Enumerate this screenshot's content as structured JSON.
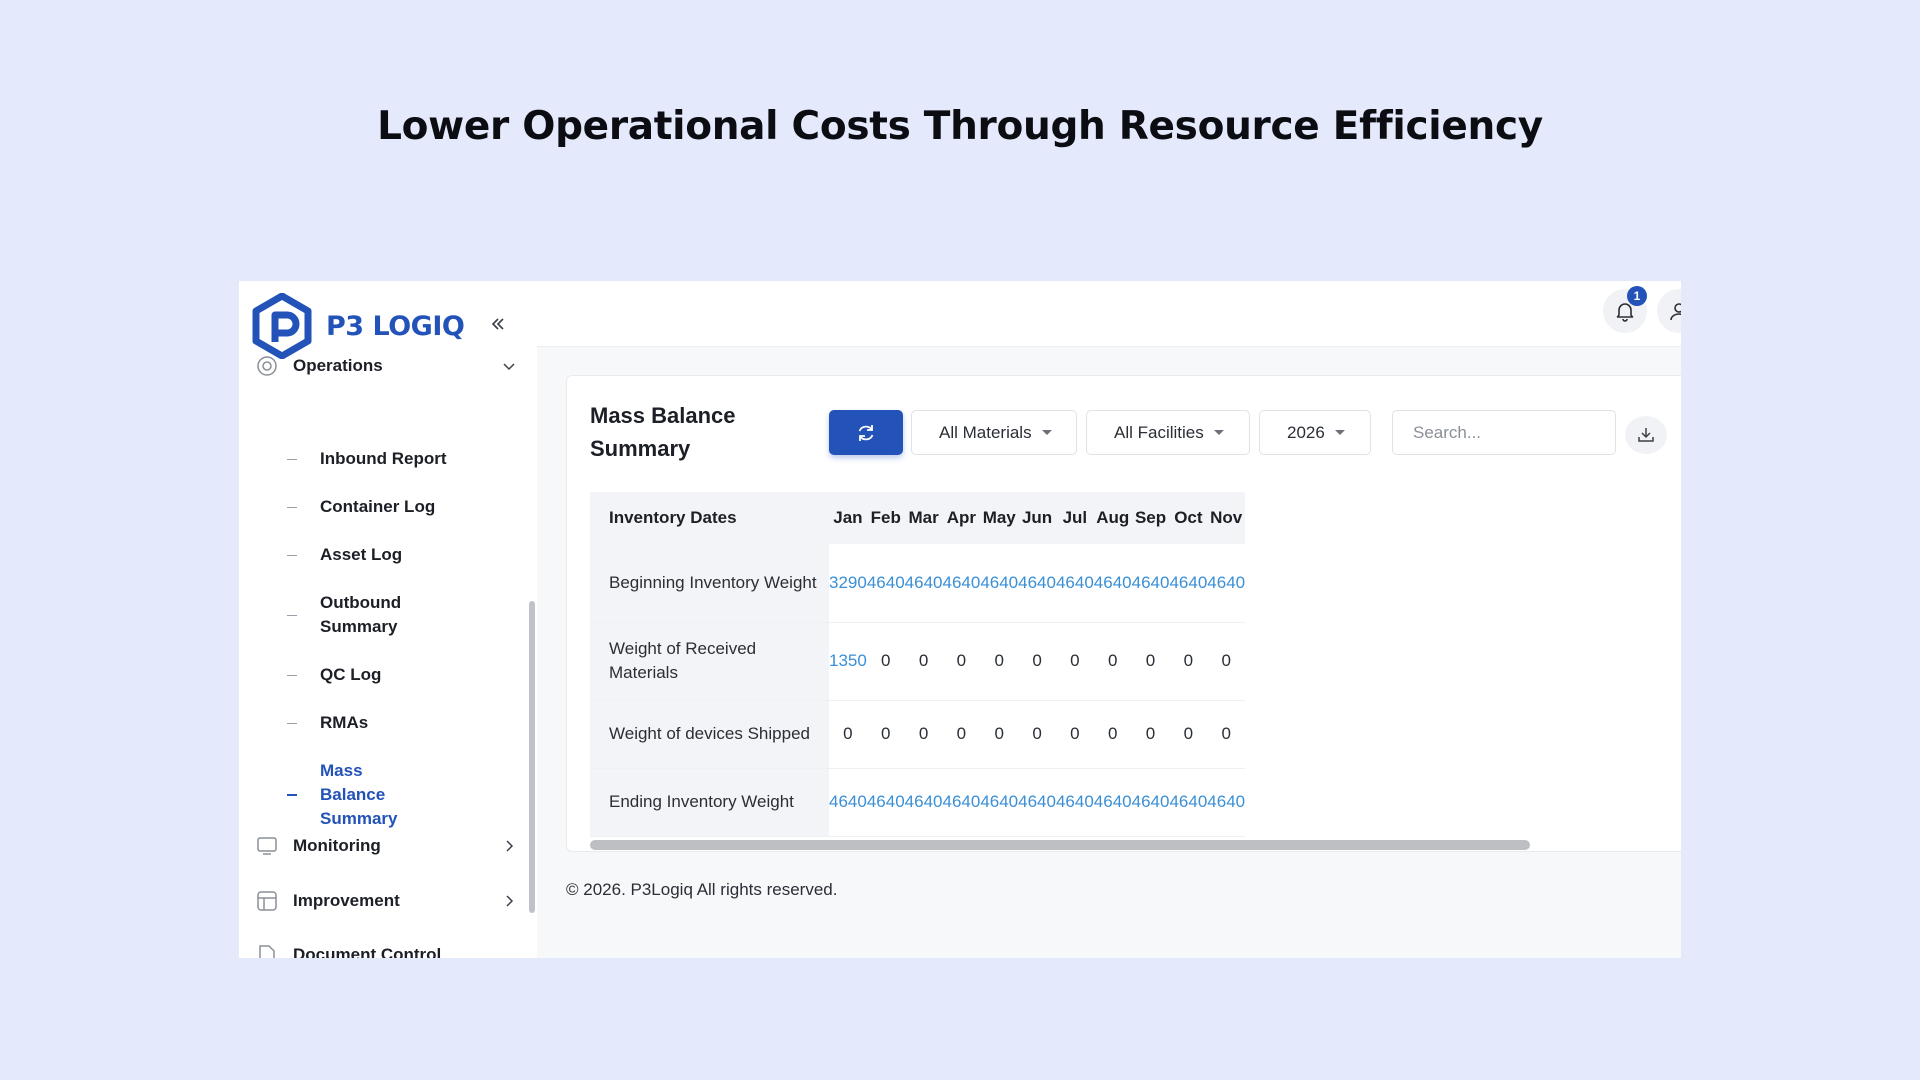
{
  "headline": "Lower Operational Costs Through Resource Efficiency",
  "brand": {
    "name": "P3 LOGIQ",
    "accent": "#2352b8"
  },
  "sidebar": {
    "sections": [
      {
        "label": "Operations",
        "icon": "target-icon",
        "expanded": true
      },
      {
        "label": "Monitoring",
        "icon": "monitor-icon",
        "expanded": false
      },
      {
        "label": "Improvement",
        "icon": "layout-icon",
        "expanded": false
      },
      {
        "label": "Document Control",
        "icon": "document-icon",
        "expanded": false
      }
    ],
    "operations_items": [
      {
        "label": "Inbound Report"
      },
      {
        "label": "Container Log"
      },
      {
        "label": "Asset Log"
      },
      {
        "label": "Outbound Summary"
      },
      {
        "label": "QC Log"
      },
      {
        "label": "RMAs"
      },
      {
        "label": "Mass Balance Summary",
        "active": true
      }
    ]
  },
  "topbar": {
    "notification_count": "1"
  },
  "card": {
    "title": "Mass Balance Summary",
    "filters": {
      "materials": "All Materials",
      "facilities": "All Facilities",
      "year": "2026"
    },
    "search_placeholder": "Search...",
    "table": {
      "header": "Inventory Dates",
      "months": [
        "Jan",
        "Feb",
        "Mar",
        "Apr",
        "May",
        "Jun",
        "Jul",
        "Aug",
        "Sep",
        "Oct",
        "Nov"
      ],
      "rows": [
        {
          "label": "Beginning Inventory Weight",
          "values": [
            "3290",
            "4640",
            "4640",
            "4640",
            "4640",
            "4640",
            "4640",
            "4640",
            "4640",
            "4640",
            "4640"
          ],
          "link": true
        },
        {
          "label": "Weight of Received Materials",
          "values": [
            "1350",
            "0",
            "0",
            "0",
            "0",
            "0",
            "0",
            "0",
            "0",
            "0",
            "0"
          ],
          "link": false
        },
        {
          "label": "Weight of devices Shipped",
          "values": [
            "0",
            "0",
            "0",
            "0",
            "0",
            "0",
            "0",
            "0",
            "0",
            "0",
            "0"
          ],
          "link": false
        },
        {
          "label": "Ending Inventory Weight",
          "values": [
            "4640",
            "4640",
            "4640",
            "4640",
            "4640",
            "4640",
            "4640",
            "4640",
            "4640",
            "4640",
            "4640"
          ],
          "link": true
        }
      ]
    }
  },
  "footer": "© 2026. P3Logiq All rights reserved."
}
